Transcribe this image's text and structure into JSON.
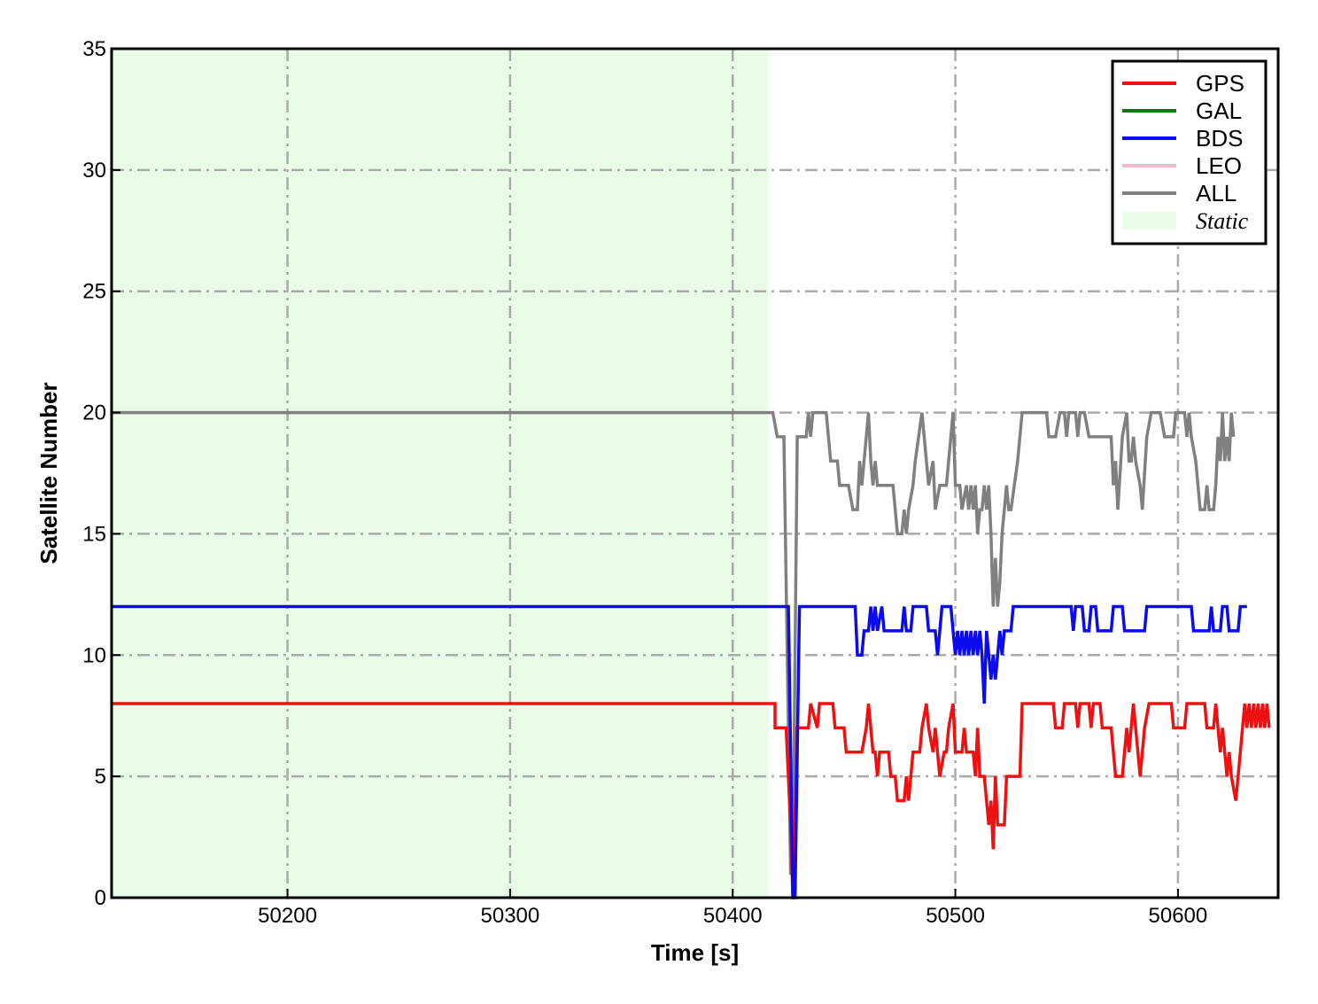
{
  "chart_data": {
    "type": "line",
    "xlabel": "Time [s]",
    "ylabel": "Satellite Number",
    "xlim": [
      50121,
      50645
    ],
    "ylim": [
      0,
      35
    ],
    "xticks": [
      50200,
      50300,
      50400,
      50500,
      50600
    ],
    "yticks": [
      0,
      5,
      10,
      15,
      20,
      25,
      30,
      35
    ],
    "grid": true,
    "legend_position": "top-right",
    "shaded_region": {
      "name": "Static",
      "x_start": 50121,
      "x_end": 50416,
      "color": "#e8fce8"
    },
    "series": [
      {
        "name": "GPS",
        "color": "#ee1111",
        "points": [
          [
            50121,
            8
          ],
          [
            50419,
            8
          ],
          [
            50419,
            7
          ],
          [
            50424,
            7
          ],
          [
            50426,
            3
          ],
          [
            50427,
            0
          ],
          [
            50428,
            3
          ],
          [
            50429,
            7
          ],
          [
            50434,
            7
          ],
          [
            50435,
            8
          ],
          [
            50438,
            7
          ],
          [
            50439,
            8
          ],
          [
            50445,
            8
          ],
          [
            50446,
            7
          ],
          [
            50450,
            7
          ],
          [
            50451,
            6
          ],
          [
            50458,
            6
          ],
          [
            50460,
            7
          ],
          [
            50461,
            8
          ],
          [
            50462,
            7
          ],
          [
            50463,
            6
          ],
          [
            50464,
            6
          ],
          [
            50465,
            5
          ],
          [
            50466,
            6
          ],
          [
            50470,
            6
          ],
          [
            50471,
            5
          ],
          [
            50473,
            5
          ],
          [
            50474,
            4
          ],
          [
            50477,
            4
          ],
          [
            50478,
            5
          ],
          [
            50479,
            4
          ],
          [
            50480,
            5
          ],
          [
            50481,
            6
          ],
          [
            50484,
            6
          ],
          [
            50485,
            7
          ],
          [
            50487,
            8
          ],
          [
            50488,
            7
          ],
          [
            50490,
            6
          ],
          [
            50491,
            7
          ],
          [
            50493,
            5
          ],
          [
            50495,
            6
          ],
          [
            50496,
            6
          ],
          [
            50497,
            7
          ],
          [
            50499,
            8
          ],
          [
            50500,
            6
          ],
          [
            50503,
            6
          ],
          [
            50504,
            7
          ],
          [
            50505,
            6
          ],
          [
            50508,
            6
          ],
          [
            50509,
            5
          ],
          [
            50510,
            7
          ],
          [
            50511,
            5
          ],
          [
            50513,
            5
          ],
          [
            50514,
            4
          ],
          [
            50515,
            3
          ],
          [
            50516,
            4
          ],
          [
            50517,
            2
          ],
          [
            50518,
            5
          ],
          [
            50519,
            3
          ],
          [
            50522,
            3
          ],
          [
            50523,
            5
          ],
          [
            50529,
            5
          ],
          [
            50530,
            8
          ],
          [
            50544,
            8
          ],
          [
            50545,
            7
          ],
          [
            50548,
            7
          ],
          [
            50549,
            8
          ],
          [
            50554,
            8
          ],
          [
            50555,
            7
          ],
          [
            50556,
            8
          ],
          [
            50560,
            8
          ],
          [
            50561,
            7
          ],
          [
            50562,
            8
          ],
          [
            50565,
            8
          ],
          [
            50566,
            7
          ],
          [
            50570,
            7
          ],
          [
            50572,
            5
          ],
          [
            50575,
            5
          ],
          [
            50577,
            7
          ],
          [
            50578,
            6
          ],
          [
            50579,
            7
          ],
          [
            50580,
            8
          ],
          [
            50581,
            7
          ],
          [
            50583,
            5
          ],
          [
            50585,
            7
          ],
          [
            50587,
            8
          ],
          [
            50597,
            8
          ],
          [
            50598,
            7
          ],
          [
            50603,
            7
          ],
          [
            50604,
            8
          ],
          [
            50612,
            8
          ],
          [
            50613,
            7
          ],
          [
            50616,
            7
          ],
          [
            50617,
            8
          ],
          [
            50618,
            7
          ],
          [
            50619,
            6
          ],
          [
            50620,
            7
          ],
          [
            50621,
            6
          ],
          [
            50622,
            5
          ],
          [
            50623,
            6
          ],
          [
            50624,
            5
          ],
          [
            50626,
            4
          ],
          [
            50627,
            5
          ],
          [
            50629,
            7
          ],
          [
            50630,
            8
          ],
          [
            50631,
            7
          ],
          [
            50632,
            8
          ],
          [
            50633,
            7
          ],
          [
            50634,
            8
          ],
          [
            50635,
            7
          ],
          [
            50636,
            8
          ],
          [
            50637,
            7
          ],
          [
            50638,
            8
          ],
          [
            50639,
            7
          ],
          [
            50640,
            8
          ],
          [
            50641,
            7
          ]
        ]
      },
      {
        "name": "GAL",
        "color": "#117711",
        "points": []
      },
      {
        "name": "BDS",
        "color": "#0b0bee",
        "points": [
          [
            50121,
            12
          ],
          [
            50425,
            12
          ],
          [
            50427,
            0
          ],
          [
            50428,
            0
          ],
          [
            50430,
            12
          ],
          [
            50455,
            12
          ],
          [
            50456,
            10
          ],
          [
            50458,
            10
          ],
          [
            50459,
            11
          ],
          [
            50461,
            11
          ],
          [
            50462,
            12
          ],
          [
            50463,
            11
          ],
          [
            50464,
            12
          ],
          [
            50465,
            11
          ],
          [
            50467,
            12
          ],
          [
            50468,
            11
          ],
          [
            50476,
            11
          ],
          [
            50477,
            12
          ],
          [
            50478,
            11
          ],
          [
            50480,
            11
          ],
          [
            50481,
            12
          ],
          [
            50487,
            12
          ],
          [
            50488,
            11
          ],
          [
            50491,
            11
          ],
          [
            50492,
            10
          ],
          [
            50494,
            12
          ],
          [
            50498,
            12
          ],
          [
            50499,
            11
          ],
          [
            50500,
            10
          ],
          [
            50501,
            11
          ],
          [
            50502,
            10
          ],
          [
            50503,
            11
          ],
          [
            50504,
            10
          ],
          [
            50505,
            11
          ],
          [
            50506,
            10
          ],
          [
            50507,
            11
          ],
          [
            50508,
            10
          ],
          [
            50509,
            11
          ],
          [
            50510,
            10
          ],
          [
            50511,
            11
          ],
          [
            50512,
            10
          ],
          [
            50513,
            8
          ],
          [
            50514,
            11
          ],
          [
            50515,
            10
          ],
          [
            50516,
            9
          ],
          [
            50517,
            10
          ],
          [
            50518,
            9
          ],
          [
            50519,
            10
          ],
          [
            50520,
            11
          ],
          [
            50521,
            10
          ],
          [
            50522,
            11
          ],
          [
            50525,
            11
          ],
          [
            50526,
            12
          ],
          [
            50552,
            12
          ],
          [
            50553,
            11
          ],
          [
            50554,
            12
          ],
          [
            50557,
            12
          ],
          [
            50558,
            11
          ],
          [
            50560,
            11
          ],
          [
            50561,
            12
          ],
          [
            50563,
            12
          ],
          [
            50564,
            11
          ],
          [
            50570,
            11
          ],
          [
            50571,
            12
          ],
          [
            50575,
            12
          ],
          [
            50576,
            11
          ],
          [
            50585,
            11
          ],
          [
            50586,
            12
          ],
          [
            50606,
            12
          ],
          [
            50607,
            11
          ],
          [
            50614,
            11
          ],
          [
            50615,
            12
          ],
          [
            50616,
            11
          ],
          [
            50619,
            11
          ],
          [
            50620,
            12
          ],
          [
            50622,
            12
          ],
          [
            50623,
            11
          ],
          [
            50627,
            11
          ],
          [
            50628,
            12
          ],
          [
            50631,
            12
          ]
        ]
      },
      {
        "name": "LEO",
        "color": "#f7b8c8",
        "points": []
      },
      {
        "name": "ALL",
        "color": "#808080",
        "points": [
          [
            50121,
            20
          ],
          [
            50418,
            20
          ],
          [
            50420,
            19
          ],
          [
            50423,
            19
          ],
          [
            50426,
            1
          ],
          [
            50427,
            1
          ],
          [
            50429,
            19
          ],
          [
            50433,
            19
          ],
          [
            50434,
            20
          ],
          [
            50435,
            19
          ],
          [
            50436,
            20
          ],
          [
            50442,
            20
          ],
          [
            50444,
            18
          ],
          [
            50447,
            18
          ],
          [
            50448,
            17
          ],
          [
            50452,
            17
          ],
          [
            50454,
            16
          ],
          [
            50456,
            16
          ],
          [
            50457,
            18
          ],
          [
            50458,
            17
          ],
          [
            50459,
            18
          ],
          [
            50461,
            20
          ],
          [
            50462,
            18
          ],
          [
            50463,
            17
          ],
          [
            50464,
            18
          ],
          [
            50465,
            17
          ],
          [
            50466,
            17
          ],
          [
            50467,
            17
          ],
          [
            50472,
            17
          ],
          [
            50473,
            16
          ],
          [
            50474,
            15
          ],
          [
            50476,
            15
          ],
          [
            50477,
            16
          ],
          [
            50478,
            15
          ],
          [
            50479,
            16
          ],
          [
            50481,
            17
          ],
          [
            50482,
            18
          ],
          [
            50485,
            20
          ],
          [
            50487,
            18
          ],
          [
            50488,
            17
          ],
          [
            50490,
            18
          ],
          [
            50491,
            16
          ],
          [
            50493,
            17
          ],
          [
            50496,
            17
          ],
          [
            50497,
            18
          ],
          [
            50499,
            20
          ],
          [
            50500,
            17
          ],
          [
            50502,
            17
          ],
          [
            50503,
            16
          ],
          [
            50505,
            17
          ],
          [
            50506,
            16
          ],
          [
            50507,
            17
          ],
          [
            50508,
            16
          ],
          [
            50509,
            17
          ],
          [
            50510,
            15
          ],
          [
            50511,
            16
          ],
          [
            50512,
            16
          ],
          [
            50513,
            17
          ],
          [
            50514,
            16
          ],
          [
            50515,
            17
          ],
          [
            50516,
            15
          ],
          [
            50517,
            12
          ],
          [
            50518,
            14
          ],
          [
            50519,
            12
          ],
          [
            50520,
            13
          ],
          [
            50521,
            15
          ],
          [
            50522,
            16
          ],
          [
            50523,
            17
          ],
          [
            50524,
            16
          ],
          [
            50525,
            16
          ],
          [
            50528,
            18
          ],
          [
            50530,
            20
          ],
          [
            50541,
            20
          ],
          [
            50542,
            19
          ],
          [
            50545,
            19
          ],
          [
            50547,
            20
          ],
          [
            50549,
            20
          ],
          [
            50550,
            19
          ],
          [
            50551,
            20
          ],
          [
            50554,
            20
          ],
          [
            50555,
            19
          ],
          [
            50556,
            20
          ],
          [
            50558,
            20
          ],
          [
            50560,
            19
          ],
          [
            50570,
            19
          ],
          [
            50571,
            17
          ],
          [
            50572,
            18
          ],
          [
            50573,
            16
          ],
          [
            50575,
            19
          ],
          [
            50577,
            20
          ],
          [
            50578,
            18
          ],
          [
            50579,
            18
          ],
          [
            50580,
            19
          ],
          [
            50581,
            18
          ],
          [
            50583,
            17
          ],
          [
            50584,
            16
          ],
          [
            50586,
            19
          ],
          [
            50588,
            20
          ],
          [
            50592,
            20
          ],
          [
            50594,
            19
          ],
          [
            50598,
            19
          ],
          [
            50599,
            20
          ],
          [
            50603,
            20
          ],
          [
            50604,
            19
          ],
          [
            50605,
            20
          ],
          [
            50606,
            19
          ],
          [
            50608,
            18
          ],
          [
            50610,
            16
          ],
          [
            50612,
            16
          ],
          [
            50613,
            17
          ],
          [
            50614,
            16
          ],
          [
            50616,
            16
          ],
          [
            50617,
            17
          ],
          [
            50618,
            19
          ],
          [
            50619,
            18
          ],
          [
            50620,
            20
          ],
          [
            50621,
            18
          ],
          [
            50622,
            19
          ],
          [
            50623,
            18
          ],
          [
            50624,
            20
          ],
          [
            50625,
            19
          ]
        ]
      }
    ]
  }
}
